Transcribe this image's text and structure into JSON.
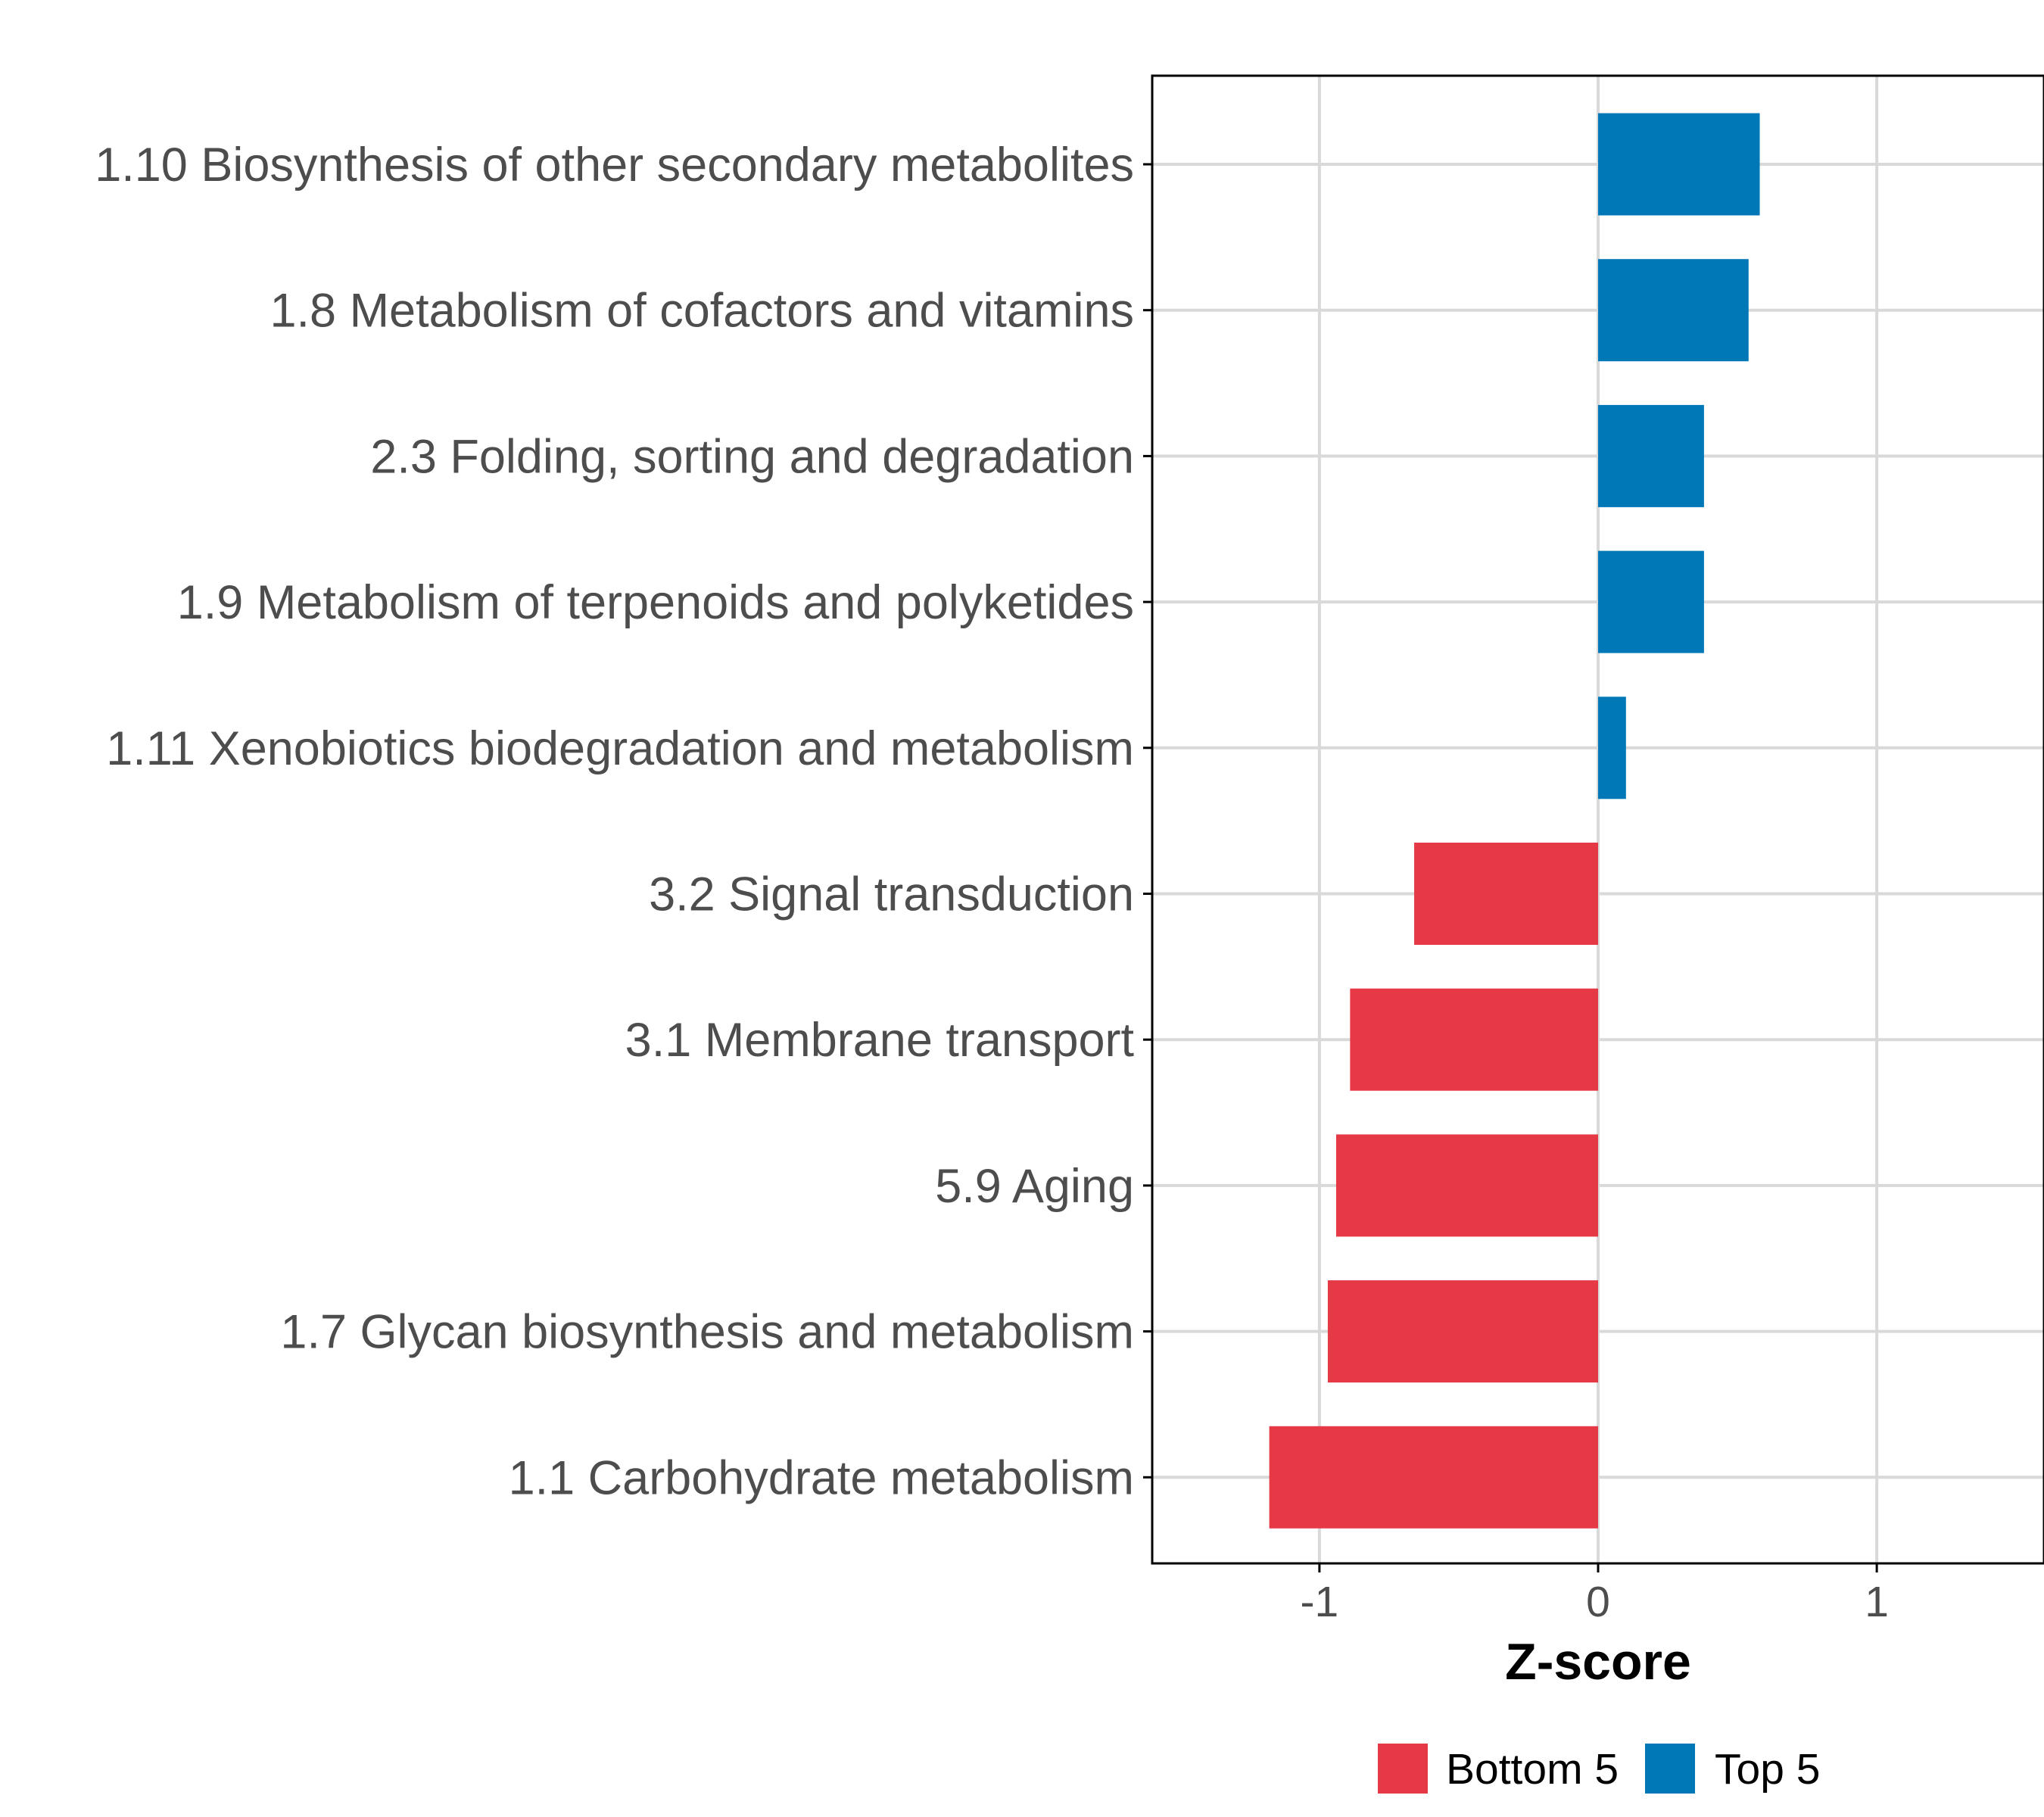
{
  "chart_data": {
    "type": "bar",
    "orientation": "horizontal",
    "xlabel": "Z-score",
    "xlim": [
      -1.6,
      1.6
    ],
    "xticks": [
      -1,
      0,
      1
    ],
    "xtick_labels": [
      "-1",
      "0",
      "1"
    ],
    "grid": true,
    "legend_position": "bottom",
    "groups": {
      "bottom": {
        "label": "Bottom 5",
        "color": "#e63946"
      },
      "top": {
        "label": "Top 5",
        "color": "#0077b6"
      }
    },
    "bars": [
      {
        "category": "1.10 Biosynthesis of other secondary metabolites",
        "value": 0.58,
        "group": "top"
      },
      {
        "category": "1.8 Metabolism of cofactors and vitamins",
        "value": 0.54,
        "group": "top"
      },
      {
        "category": "2.3 Folding, sorting and degradation",
        "value": 0.38,
        "group": "top"
      },
      {
        "category": "1.9 Metabolism of terpenoids and polyketides",
        "value": 0.38,
        "group": "top"
      },
      {
        "category": "1.11 Xenobiotics biodegradation and metabolism",
        "value": 0.1,
        "group": "top"
      },
      {
        "category": "3.2 Signal transduction",
        "value": -0.66,
        "group": "bottom"
      },
      {
        "category": "3.1 Membrane transport",
        "value": -0.89,
        "group": "bottom"
      },
      {
        "category": "5.9 Aging",
        "value": -0.94,
        "group": "bottom"
      },
      {
        "category": "1.7 Glycan biosynthesis and metabolism",
        "value": -0.97,
        "group": "bottom"
      },
      {
        "category": "1.1 Carbohydrate metabolism",
        "value": -1.18,
        "group": "bottom"
      }
    ]
  }
}
